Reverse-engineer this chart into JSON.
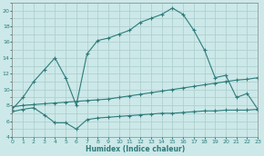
{
  "xlabel": "Humidex (Indice chaleur)",
  "bg_color": "#cce8e8",
  "grid_color": "#b0d4d4",
  "line_color": "#2e7b7b",
  "xlim": [
    0,
    23
  ],
  "ylim": [
    4,
    21
  ],
  "xticks": [
    0,
    1,
    2,
    3,
    4,
    5,
    6,
    7,
    8,
    9,
    10,
    11,
    12,
    13,
    14,
    15,
    16,
    17,
    18,
    19,
    20,
    21,
    22,
    23
  ],
  "yticks": [
    4,
    6,
    8,
    10,
    12,
    14,
    16,
    18,
    20
  ],
  "curve1_x": [
    0,
    1,
    2,
    3,
    4,
    5,
    6,
    7,
    8,
    9,
    10,
    11,
    12,
    13,
    14,
    15,
    16,
    17,
    18,
    19,
    20,
    21,
    22,
    23
  ],
  "curve1_y": [
    7.5,
    9.0,
    11.0,
    12.5,
    14.0,
    11.5,
    8.0,
    14.5,
    16.2,
    16.5,
    17.0,
    17.5,
    18.5,
    19.0,
    19.5,
    20.3,
    19.5,
    17.5,
    15.0,
    11.5,
    11.8,
    9.0,
    9.5,
    7.5
  ],
  "curve2_x": [
    0,
    1,
    2,
    3,
    4,
    5,
    6,
    7,
    8,
    9,
    10,
    11,
    12,
    13,
    14,
    15,
    16,
    17,
    18,
    19,
    20,
    21,
    22,
    23
  ],
  "curve2_y": [
    7.8,
    8.0,
    8.1,
    8.2,
    8.3,
    8.4,
    8.5,
    8.6,
    8.7,
    8.8,
    9.0,
    9.2,
    9.4,
    9.6,
    9.8,
    10.0,
    10.2,
    10.4,
    10.6,
    10.8,
    11.0,
    11.2,
    11.3,
    11.5
  ],
  "curve3_x": [
    0,
    1,
    2,
    3,
    4,
    5,
    6,
    7,
    8,
    9,
    10,
    11,
    12,
    13,
    14,
    15,
    16,
    17,
    18,
    19,
    20,
    21,
    22,
    23
  ],
  "curve3_y": [
    7.2,
    7.5,
    7.7,
    6.8,
    5.8,
    5.8,
    5.0,
    6.2,
    6.4,
    6.5,
    6.6,
    6.7,
    6.8,
    6.9,
    7.0,
    7.0,
    7.1,
    7.2,
    7.3,
    7.3,
    7.4,
    7.4,
    7.4,
    7.5
  ]
}
